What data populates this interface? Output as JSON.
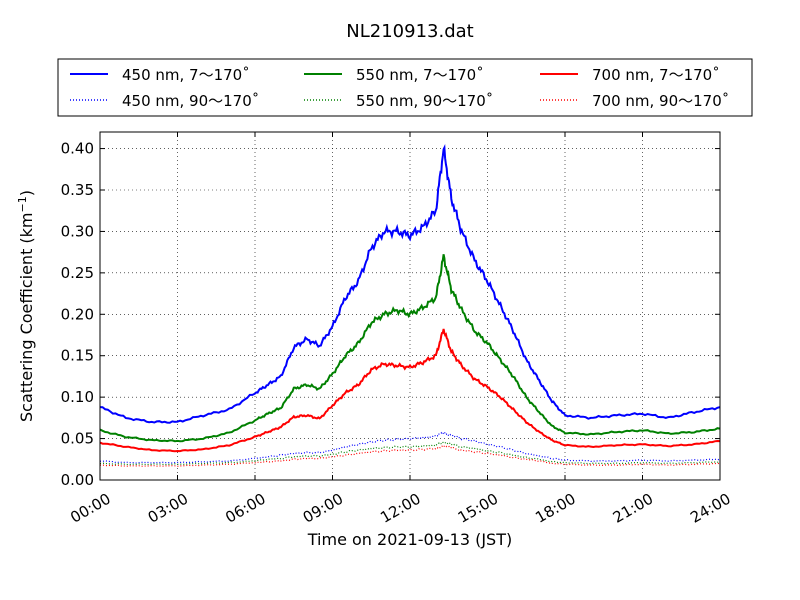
{
  "chart_data": {
    "type": "line",
    "title": "NL210913.dat",
    "xlabel": "Time on 2021-09-13 (JST)",
    "ylabel_main": "Scattering Coefficient (km",
    "ylabel_sup": "−1",
    "ylabel_close": ")",
    "xlim": [
      "00:00",
      "24:00"
    ],
    "ylim": [
      0.0,
      0.42
    ],
    "grid": true,
    "legend_position": "top",
    "x_ticks": [
      "00:00",
      "03:00",
      "06:00",
      "09:00",
      "12:00",
      "15:00",
      "18:00",
      "21:00",
      "24:00"
    ],
    "y_ticks": [
      "0.00",
      "0.05",
      "0.10",
      "0.15",
      "0.20",
      "0.25",
      "0.30",
      "0.35",
      "0.40"
    ],
    "y_tick_values": [
      0.0,
      0.05,
      0.1,
      0.15,
      0.2,
      0.25,
      0.3,
      0.35,
      0.4
    ],
    "x_units": "hours",
    "x": [
      0,
      1,
      2,
      3,
      4,
      5,
      6,
      6.5,
      7,
      7.5,
      8,
      8.5,
      9,
      9.5,
      10,
      10.5,
      11,
      11.5,
      12,
      12.5,
      13,
      13.3,
      13.6,
      14,
      14.5,
      15,
      15.5,
      16,
      16.5,
      17,
      17.5,
      18,
      19,
      20,
      21,
      22,
      23,
      24
    ],
    "series": [
      {
        "name": "450 nm, 7～170˚",
        "color": "#0000ff",
        "style": "solid",
        "values": [
          0.088,
          0.075,
          0.07,
          0.07,
          0.078,
          0.085,
          0.105,
          0.115,
          0.125,
          0.16,
          0.17,
          0.162,
          0.185,
          0.22,
          0.24,
          0.28,
          0.3,
          0.3,
          0.295,
          0.305,
          0.325,
          0.4,
          0.34,
          0.3,
          0.265,
          0.24,
          0.21,
          0.18,
          0.145,
          0.12,
          0.095,
          0.078,
          0.075,
          0.078,
          0.08,
          0.075,
          0.082,
          0.088
        ]
      },
      {
        "name": "550 nm, 7～170˚",
        "color": "#008000",
        "style": "solid",
        "values": [
          0.06,
          0.052,
          0.048,
          0.047,
          0.05,
          0.057,
          0.072,
          0.08,
          0.087,
          0.11,
          0.115,
          0.11,
          0.128,
          0.15,
          0.165,
          0.19,
          0.2,
          0.205,
          0.2,
          0.208,
          0.22,
          0.27,
          0.23,
          0.205,
          0.18,
          0.165,
          0.145,
          0.125,
          0.1,
          0.082,
          0.065,
          0.057,
          0.055,
          0.058,
          0.06,
          0.056,
          0.058,
          0.062
        ]
      },
      {
        "name": "700 nm, 7～170˚",
        "color": "#ff0000",
        "style": "solid",
        "values": [
          0.045,
          0.04,
          0.036,
          0.035,
          0.037,
          0.042,
          0.052,
          0.058,
          0.064,
          0.076,
          0.078,
          0.074,
          0.09,
          0.105,
          0.115,
          0.133,
          0.14,
          0.138,
          0.136,
          0.142,
          0.15,
          0.182,
          0.155,
          0.138,
          0.122,
          0.112,
          0.1,
          0.085,
          0.07,
          0.058,
          0.048,
          0.042,
          0.04,
          0.042,
          0.043,
          0.041,
          0.043,
          0.047
        ]
      },
      {
        "name": "450 nm, 90～170˚",
        "color": "#0000ff",
        "style": "dotted",
        "values": [
          0.023,
          0.021,
          0.021,
          0.021,
          0.022,
          0.023,
          0.026,
          0.028,
          0.03,
          0.032,
          0.033,
          0.033,
          0.036,
          0.04,
          0.043,
          0.046,
          0.048,
          0.049,
          0.05,
          0.051,
          0.053,
          0.057,
          0.054,
          0.05,
          0.047,
          0.043,
          0.04,
          0.036,
          0.032,
          0.029,
          0.026,
          0.024,
          0.023,
          0.023,
          0.024,
          0.023,
          0.024,
          0.025
        ]
      },
      {
        "name": "550 nm, 90～170˚",
        "color": "#008000",
        "style": "dotted",
        "values": [
          0.02,
          0.019,
          0.019,
          0.019,
          0.02,
          0.021,
          0.023,
          0.025,
          0.026,
          0.028,
          0.029,
          0.029,
          0.031,
          0.034,
          0.036,
          0.038,
          0.039,
          0.04,
          0.04,
          0.041,
          0.042,
          0.045,
          0.043,
          0.04,
          0.038,
          0.035,
          0.033,
          0.03,
          0.027,
          0.025,
          0.022,
          0.021,
          0.02,
          0.02,
          0.021,
          0.02,
          0.021,
          0.022
        ]
      },
      {
        "name": "700 nm, 90～170˚",
        "color": "#ff0000",
        "style": "dotted",
        "values": [
          0.018,
          0.017,
          0.017,
          0.017,
          0.018,
          0.019,
          0.021,
          0.022,
          0.023,
          0.025,
          0.026,
          0.026,
          0.028,
          0.03,
          0.032,
          0.034,
          0.035,
          0.036,
          0.036,
          0.037,
          0.038,
          0.041,
          0.039,
          0.036,
          0.034,
          0.032,
          0.03,
          0.027,
          0.025,
          0.023,
          0.02,
          0.019,
          0.018,
          0.018,
          0.019,
          0.018,
          0.019,
          0.02
        ]
      }
    ],
    "legend_order": [
      0,
      1,
      2,
      3,
      4,
      5
    ]
  }
}
